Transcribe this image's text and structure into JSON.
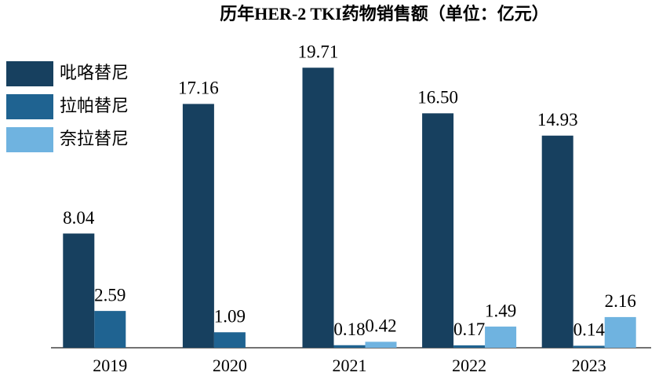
{
  "chart_data": {
    "type": "bar",
    "title": "历年HER-2 TKI药物销售额（单位：亿元）",
    "categories": [
      "2019",
      "2020",
      "2021",
      "2022",
      "2023"
    ],
    "series": [
      {
        "name": "吡咯替尼",
        "color": "#17405f",
        "values": [
          8.04,
          17.16,
          19.71,
          16.5,
          14.93
        ],
        "value_labels": [
          "8.04",
          "17.16",
          "19.71",
          "16.50",
          "14.93"
        ]
      },
      {
        "name": "拉帕替尼",
        "color": "#1f6391",
        "values": [
          2.59,
          1.09,
          0.18,
          0.17,
          0.14
        ],
        "value_labels": [
          "2.59",
          "1.09",
          "0.18",
          "0.17",
          "0.14"
        ]
      },
      {
        "name": "奈拉替尼",
        "color": "#6fb3e0",
        "values": [
          null,
          null,
          0.42,
          1.49,
          2.16
        ],
        "value_labels": [
          null,
          null,
          "0.42",
          "1.49",
          "2.16"
        ]
      }
    ],
    "ylim": [
      0,
      20
    ],
    "legend": "upper left"
  }
}
